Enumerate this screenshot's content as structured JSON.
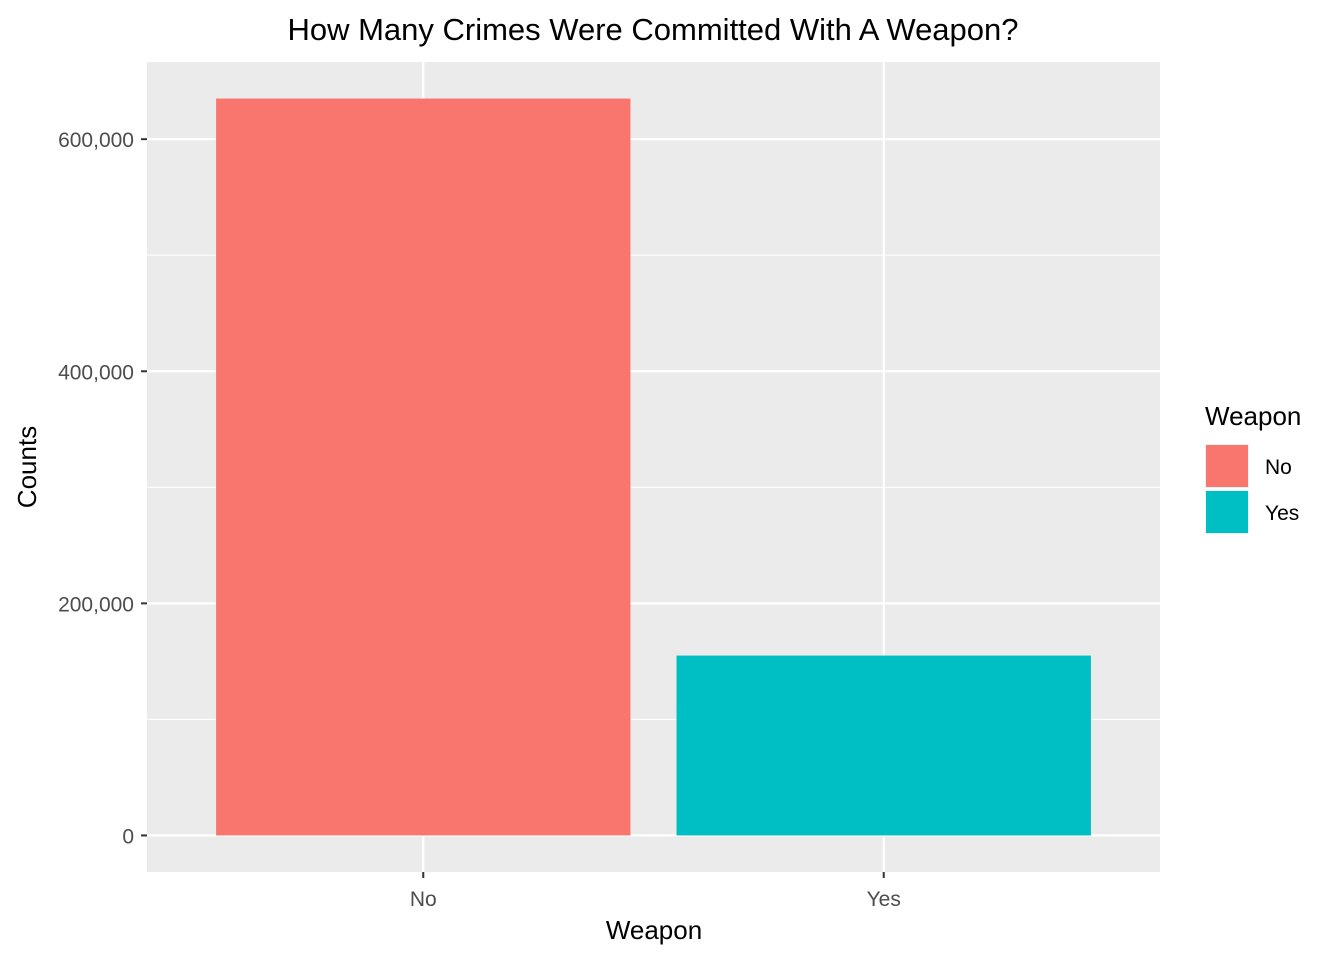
{
  "chart_data": {
    "type": "bar",
    "title": "How Many Crimes Were Committed With A Weapon?",
    "xlabel": "Weapon",
    "ylabel": "Counts",
    "categories": [
      "No",
      "Yes"
    ],
    "values": [
      635000,
      155000
    ],
    "colors": [
      "#F8766D",
      "#00BFC4"
    ],
    "ylim": [
      -31500,
      666500
    ],
    "yticks": [
      0,
      200000,
      400000,
      600000
    ],
    "ytick_labels": [
      "0",
      "200,000",
      "400,000",
      "600,000"
    ],
    "grid": true,
    "panel_color": "#EBEBEB",
    "legend": {
      "title": "Weapon",
      "position": "right",
      "entries": [
        {
          "label": "No",
          "color": "#F8766D"
        },
        {
          "label": "Yes",
          "color": "#00BFC4"
        }
      ]
    }
  }
}
